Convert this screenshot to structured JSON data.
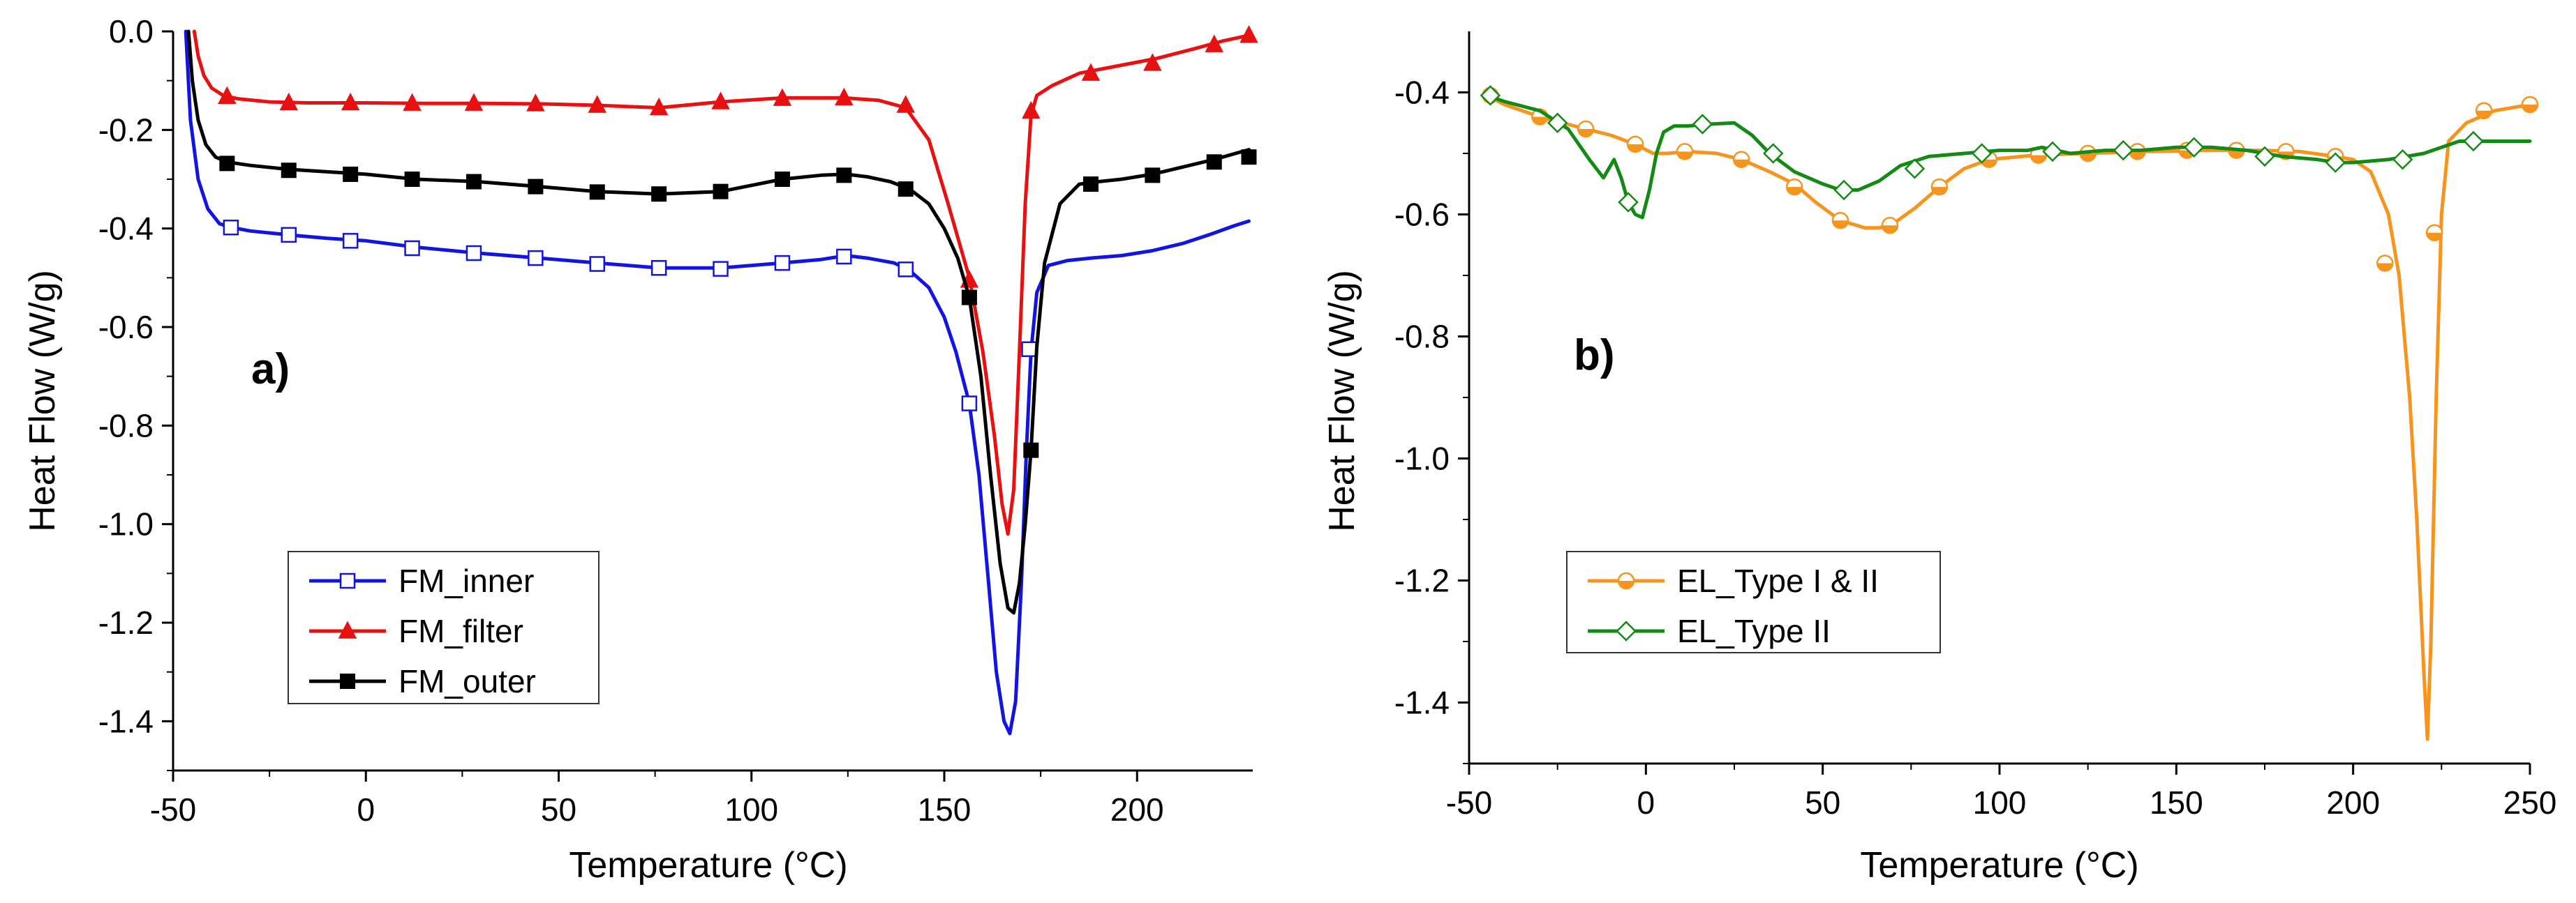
{
  "chart_data": [
    {
      "type": "line",
      "panel_label": "a)",
      "xlabel": "Temperature (°C)",
      "ylabel": "Heat Flow (W/g)",
      "xlim": [
        -50,
        230
      ],
      "ylim": [
        -1.5,
        0.0
      ],
      "xticks": [
        -50,
        0,
        50,
        100,
        150,
        200
      ],
      "xtick_labels": [
        "-50",
        "0",
        "50",
        "100",
        "150",
        "200"
      ],
      "yticks": [
        0.0,
        -0.2,
        -0.4,
        -0.6,
        -0.8,
        -1.0,
        -1.2,
        -1.4
      ],
      "ytick_labels": [
        "0.0",
        "-0.2",
        "-0.4",
        "-0.6",
        "-0.8",
        "-1.0",
        "-1.2",
        "-1.4"
      ],
      "legend_position": "bottom-left",
      "series": [
        {
          "name": "FM_inner",
          "color": "#1414e0",
          "marker": "open-square",
          "x": [
            -46.7,
            -45.5,
            -43.5,
            -41,
            -38,
            -35.5,
            -30,
            -20,
            -10,
            0,
            13,
            29,
            45,
            60,
            76,
            92,
            108,
            118,
            124.5,
            130,
            137,
            141,
            146,
            150,
            153,
            156.5,
            159,
            161.5,
            163.5,
            165.5,
            167,
            168.5,
            170,
            171.3,
            172.5,
            174,
            177,
            182,
            188,
            196,
            204,
            212,
            219,
            225,
            229
          ],
          "y": [
            0.0,
            -0.18,
            -0.3,
            -0.36,
            -0.39,
            -0.397,
            -0.405,
            -0.413,
            -0.42,
            -0.425,
            -0.438,
            -0.45,
            -0.46,
            -0.47,
            -0.48,
            -0.48,
            -0.47,
            -0.463,
            -0.455,
            -0.46,
            -0.47,
            -0.485,
            -0.52,
            -0.58,
            -0.65,
            -0.755,
            -0.9,
            -1.12,
            -1.3,
            -1.4,
            -1.425,
            -1.36,
            -1.12,
            -0.85,
            -0.65,
            -0.53,
            -0.475,
            -0.465,
            -0.46,
            -0.455,
            -0.445,
            -0.43,
            -0.412,
            -0.395,
            -0.385
          ],
          "marker_x": [
            -35,
            -20,
            -4,
            12,
            28,
            44,
            60,
            76,
            92,
            108,
            124,
            140,
            156.5,
            172
          ],
          "marker_y": [
            -0.398,
            -0.413,
            -0.425,
            -0.44,
            -0.45,
            -0.46,
            -0.472,
            -0.48,
            -0.482,
            -0.47,
            -0.457,
            -0.483,
            -0.755,
            -0.645
          ]
        },
        {
          "name": "FM_filter",
          "color": "#e81010",
          "marker": "filled-triangle",
          "x": [
            -44.5,
            -43.5,
            -42,
            -40,
            -37,
            -33,
            -25,
            -15,
            0,
            15,
            30,
            45,
            60,
            76,
            92,
            108,
            124,
            133,
            140,
            146,
            151,
            156.5,
            160,
            163,
            165,
            166.5,
            168,
            169.5,
            171,
            172.5,
            174,
            178,
            185,
            195,
            205,
            215,
            222,
            229
          ],
          "y": [
            0.0,
            -0.05,
            -0.09,
            -0.115,
            -0.13,
            -0.137,
            -0.143,
            -0.145,
            -0.145,
            -0.146,
            -0.146,
            -0.147,
            -0.15,
            -0.155,
            -0.143,
            -0.135,
            -0.135,
            -0.14,
            -0.155,
            -0.22,
            -0.35,
            -0.5,
            -0.65,
            -0.82,
            -0.96,
            -1.02,
            -0.93,
            -0.65,
            -0.35,
            -0.17,
            -0.13,
            -0.11,
            -0.085,
            -0.07,
            -0.055,
            -0.035,
            -0.02,
            -0.008
          ],
          "marker_x": [
            -36,
            -20,
            -4,
            12,
            28,
            44,
            60,
            76,
            92,
            108,
            124,
            140,
            156.5,
            172.5,
            188,
            204,
            220,
            229
          ],
          "marker_y": [
            -0.132,
            -0.145,
            -0.145,
            -0.146,
            -0.146,
            -0.147,
            -0.15,
            -0.155,
            -0.143,
            -0.136,
            -0.135,
            -0.15,
            -0.505,
            -0.162,
            -0.085,
            -0.065,
            -0.027,
            -0.008
          ],
          "min_label": "-1.02"
        },
        {
          "name": "FM_outer",
          "color": "#000000",
          "marker": "filled-square",
          "x": [
            -46,
            -45,
            -43.5,
            -41.5,
            -39,
            -36,
            -30,
            -20,
            -10,
            0,
            13,
            29,
            45,
            60,
            76,
            92,
            108,
            118,
            124.5,
            130,
            136,
            141,
            146,
            150,
            153.5,
            156.5,
            159.5,
            162,
            164.5,
            166.5,
            168,
            169.5,
            171,
            172.5,
            174,
            176,
            180,
            185,
            190,
            196,
            204,
            212,
            220,
            229
          ],
          "y": [
            0.0,
            -0.1,
            -0.18,
            -0.23,
            -0.255,
            -0.265,
            -0.272,
            -0.28,
            -0.285,
            -0.29,
            -0.3,
            -0.305,
            -0.315,
            -0.325,
            -0.33,
            -0.325,
            -0.3,
            -0.292,
            -0.29,
            -0.295,
            -0.305,
            -0.32,
            -0.35,
            -0.4,
            -0.46,
            -0.54,
            -0.7,
            -0.9,
            -1.08,
            -1.17,
            -1.18,
            -1.12,
            -1.0,
            -0.85,
            -0.64,
            -0.47,
            -0.35,
            -0.31,
            -0.305,
            -0.3,
            -0.29,
            -0.275,
            -0.26,
            -0.24
          ],
          "marker_x": [
            -36,
            -20,
            -4,
            12,
            28,
            44,
            60,
            76,
            92,
            108,
            124,
            140,
            156.5,
            172.5,
            188,
            204,
            220,
            229
          ],
          "marker_y": [
            -0.268,
            -0.282,
            -0.29,
            -0.3,
            -0.305,
            -0.315,
            -0.326,
            -0.33,
            -0.325,
            -0.3,
            -0.292,
            -0.32,
            -0.54,
            -0.85,
            -0.31,
            -0.292,
            -0.265,
            -0.255
          ]
        }
      ]
    },
    {
      "type": "line",
      "panel_label": "b)",
      "xlabel": "Temperature (°C)",
      "ylabel": "Heat Flow (W/g)",
      "xlim": [
        -50,
        250
      ],
      "ylim": [
        -1.5,
        -0.3
      ],
      "xticks": [
        -50,
        0,
        50,
        100,
        150,
        200,
        250
      ],
      "xtick_labels": [
        "-50",
        "0",
        "50",
        "100",
        "150",
        "200",
        "250"
      ],
      "yticks": [
        -0.4,
        -0.6,
        -0.8,
        -1.0,
        -1.2,
        -1.4
      ],
      "ytick_labels": [
        "-0.4",
        "-0.6",
        "-0.8",
        "-1.0",
        "-1.2",
        "-1.4"
      ],
      "legend_position": "bottom-left",
      "series": [
        {
          "name": "EL_Type I & II",
          "color": "#f7941d",
          "marker": "half-filled-circle",
          "x": [
            -45,
            -40,
            -30,
            -17,
            -10,
            -3,
            2,
            6,
            12,
            20,
            27,
            35,
            42,
            48,
            55,
            62,
            66,
            70,
            76,
            83,
            90,
            97,
            110,
            125,
            140,
            160,
            175,
            185,
            195,
            200,
            205,
            210,
            213,
            216,
            218,
            220,
            221,
            222,
            223.5,
            225,
            227,
            232,
            240,
            250
          ],
          "y": [
            -0.405,
            -0.42,
            -0.44,
            -0.46,
            -0.47,
            -0.485,
            -0.5,
            -0.5,
            -0.497,
            -0.5,
            -0.51,
            -0.53,
            -0.55,
            -0.58,
            -0.61,
            -0.622,
            -0.622,
            -0.615,
            -0.59,
            -0.555,
            -0.525,
            -0.51,
            -0.503,
            -0.5,
            -0.497,
            -0.495,
            -0.495,
            -0.497,
            -0.505,
            -0.51,
            -0.53,
            -0.6,
            -0.7,
            -0.9,
            -1.1,
            -1.35,
            -1.46,
            -1.3,
            -0.9,
            -0.6,
            -0.48,
            -0.45,
            -0.43,
            -0.42
          ],
          "marker_x": [
            -44,
            -30,
            -17,
            -3,
            11,
            27,
            42,
            55,
            69,
            83,
            97,
            111,
            125,
            139,
            153,
            167,
            181,
            195,
            209,
            223,
            237,
            250
          ],
          "marker_y": [
            -0.405,
            -0.44,
            -0.46,
            -0.485,
            -0.497,
            -0.51,
            -0.555,
            -0.61,
            -0.618,
            -0.555,
            -0.51,
            -0.503,
            -0.5,
            -0.497,
            -0.495,
            -0.495,
            -0.497,
            -0.505,
            -0.68,
            -0.63,
            -0.43,
            -0.42
          ]
        },
        {
          "name": "EL_Type II",
          "color": "#138a13",
          "marker": "open-diamond",
          "x": [
            -45,
            -40,
            -30,
            -22,
            -16,
            -12,
            -9,
            -7,
            -5,
            -3,
            -1,
            1,
            3,
            5,
            8,
            12,
            18,
            25,
            30,
            35,
            42,
            50,
            55,
            60,
            66,
            72,
            80,
            90,
            100,
            108,
            112,
            120,
            130,
            140,
            150,
            160,
            170,
            180,
            190,
            195,
            200,
            210,
            220,
            230,
            240,
            250
          ],
          "y": [
            -0.405,
            -0.415,
            -0.43,
            -0.46,
            -0.51,
            -0.54,
            -0.51,
            -0.54,
            -0.58,
            -0.6,
            -0.605,
            -0.56,
            -0.5,
            -0.465,
            -0.455,
            -0.455,
            -0.452,
            -0.45,
            -0.47,
            -0.5,
            -0.53,
            -0.55,
            -0.56,
            -0.56,
            -0.545,
            -0.52,
            -0.505,
            -0.5,
            -0.495,
            -0.495,
            -0.49,
            -0.5,
            -0.495,
            -0.495,
            -0.49,
            -0.49,
            -0.495,
            -0.505,
            -0.51,
            -0.515,
            -0.515,
            -0.51,
            -0.5,
            -0.48,
            -0.48,
            -0.48
          ],
          "marker_x": [
            -44,
            -25,
            -5,
            16,
            36,
            56,
            76,
            95,
            115,
            135,
            155,
            175,
            195,
            214,
            234
          ],
          "marker_y": [
            -0.405,
            -0.45,
            -0.58,
            -0.452,
            -0.5,
            -0.56,
            -0.525,
            -0.5,
            -0.497,
            -0.495,
            -0.49,
            -0.505,
            -0.515,
            -0.51,
            -0.48
          ]
        }
      ]
    }
  ]
}
